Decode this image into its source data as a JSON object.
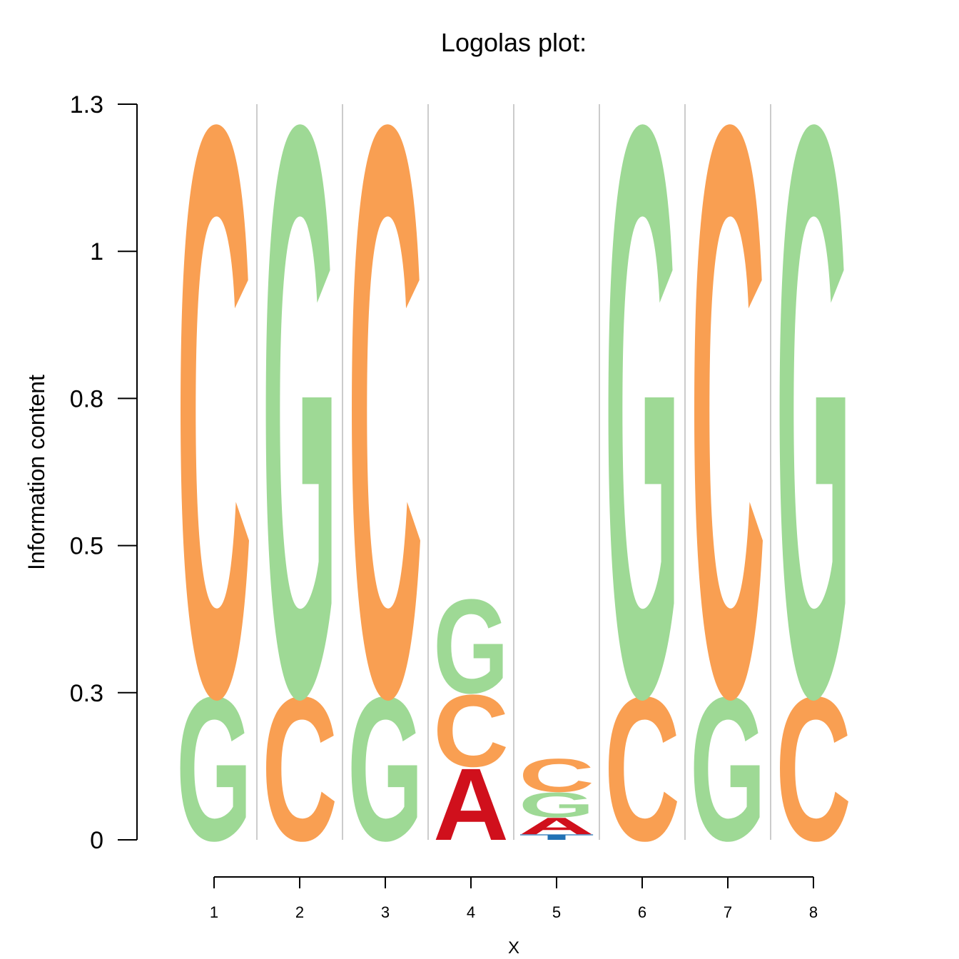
{
  "chart_data": {
    "type": "logo",
    "title": "Logolas plot:",
    "y_label": "Information content",
    "x_label": "X",
    "categories": [
      "1",
      "2",
      "3",
      "4",
      "5",
      "6",
      "7",
      "8"
    ],
    "series": [
      {
        "name": "A",
        "color": "#d0101c",
        "values": [
          0,
          0,
          0,
          0.13,
          0.03,
          0,
          0,
          0
        ]
      },
      {
        "name": "C",
        "color": "#f99f52",
        "values": [
          1.03,
          0.26,
          1.03,
          0.13,
          0.06,
          0.26,
          1.03,
          0.26
        ]
      },
      {
        "name": "G",
        "color": "#9ed995",
        "values": [
          0.26,
          1.03,
          0.26,
          0.17,
          0.045,
          1.03,
          0.26,
          1.03
        ]
      },
      {
        "name": "T",
        "color": "#2171b5",
        "values": [
          0,
          0,
          0,
          0,
          0.01,
          0,
          0,
          0
        ]
      }
    ],
    "ylim": [
      0,
      1.3
    ],
    "yticks": [
      0,
      {
        "value": 0.26,
        "label": "0.3"
      },
      {
        "value": 0.52,
        "label": "0.5"
      },
      {
        "value": 0.78,
        "label": "0.8"
      },
      {
        "value": 1.04,
        "label": "1"
      },
      1.3
    ]
  }
}
